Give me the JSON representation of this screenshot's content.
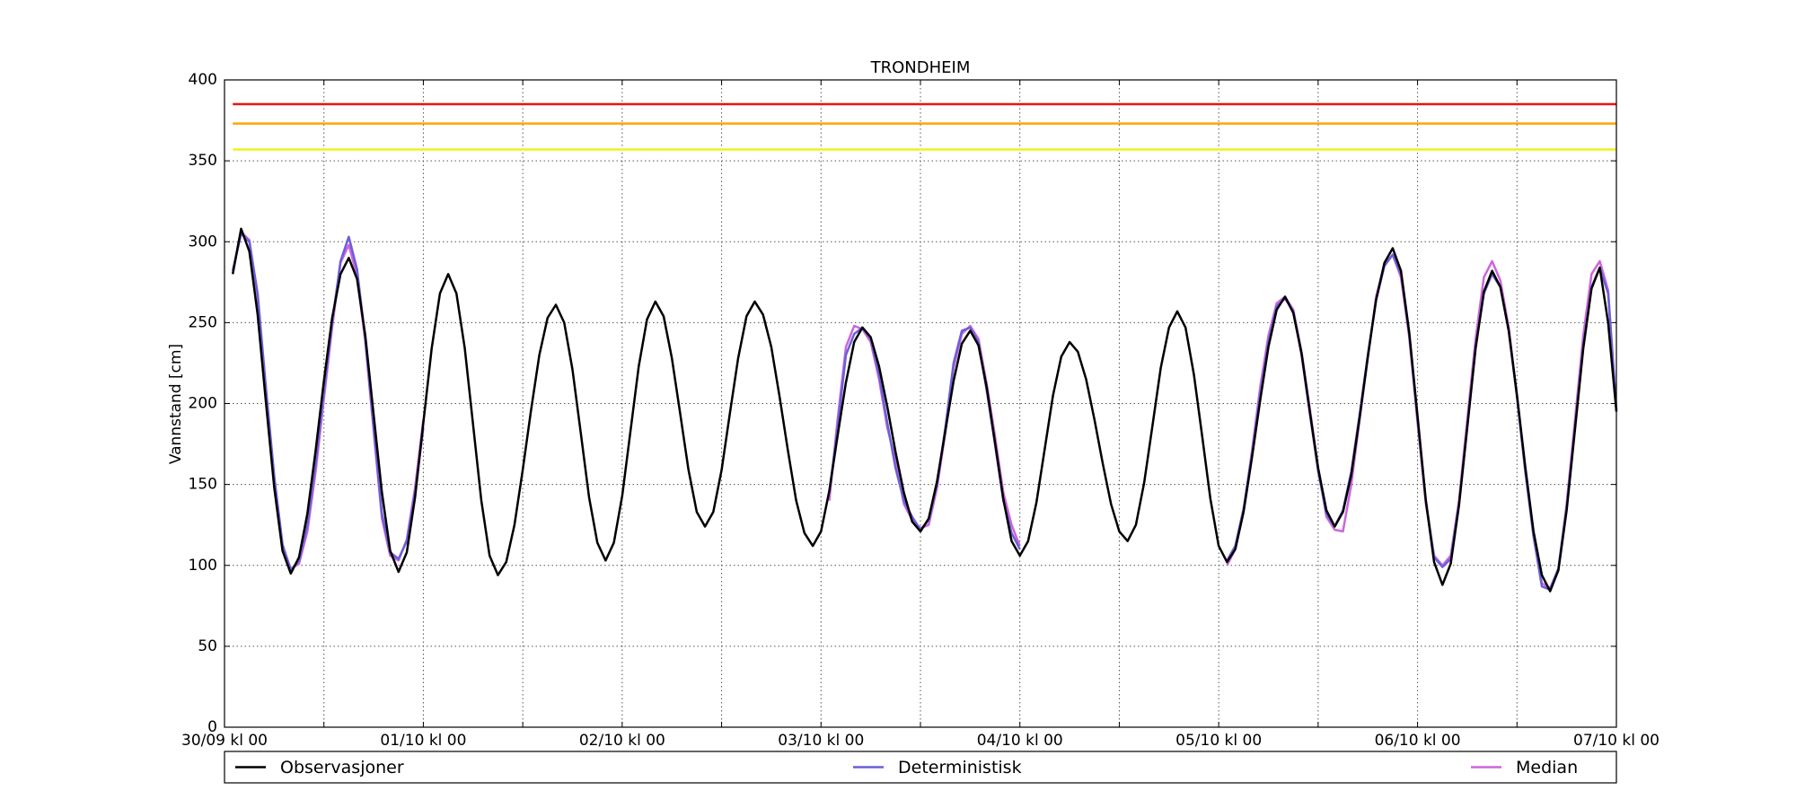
{
  "chart_data": {
    "type": "line",
    "title": "TRONDHEIM",
    "y_label": "Vannstand [cm]",
    "xlim": [
      0,
      168
    ],
    "ylim": [
      0,
      400
    ],
    "yticks": [
      0,
      50,
      100,
      150,
      200,
      250,
      300,
      350,
      400
    ],
    "xticks": [
      {
        "value": 0,
        "label": "30/09 kl 00"
      },
      {
        "value": 12,
        "label": null
      },
      {
        "value": 24,
        "label": "01/10 kl 00"
      },
      {
        "value": 36,
        "label": null
      },
      {
        "value": 48,
        "label": "02/10 kl 00"
      },
      {
        "value": 60,
        "label": null
      },
      {
        "value": 72,
        "label": "03/10 kl 00"
      },
      {
        "value": 84,
        "label": null
      },
      {
        "value": 96,
        "label": "04/10 kl 00"
      },
      {
        "value": 108,
        "label": null
      },
      {
        "value": 120,
        "label": "05/10 kl 00"
      },
      {
        "value": 132,
        "label": null
      },
      {
        "value": 144,
        "label": "06/10 kl 00"
      },
      {
        "value": 156,
        "label": null
      },
      {
        "value": 168,
        "label": "07/10 kl 00"
      }
    ],
    "grid": true,
    "legend": "below",
    "reference_lines": [
      {
        "value": 385,
        "color": "#ee1111"
      },
      {
        "value": 373,
        "color": "#ffa500"
      },
      {
        "value": 357,
        "color": "#f0f020"
      }
    ],
    "x": [
      1,
      2,
      3,
      4,
      5,
      6,
      7,
      8,
      9,
      10,
      11,
      12,
      13,
      14,
      15,
      16,
      17,
      18,
      19,
      20,
      21,
      22,
      23,
      24,
      25,
      26,
      27,
      28,
      29,
      30,
      31,
      32,
      33,
      34,
      35,
      36,
      37,
      38,
      39,
      40,
      41,
      42,
      43,
      44,
      45,
      46,
      47,
      48,
      49,
      50,
      51,
      52,
      53,
      54,
      55,
      56,
      57,
      58,
      59,
      60,
      61,
      62,
      63,
      64,
      65,
      66,
      67,
      68,
      69,
      70,
      71,
      72,
      73,
      74,
      75,
      76,
      77,
      78,
      79,
      80,
      81,
      82,
      83,
      84,
      85,
      86,
      87,
      88,
      89,
      90,
      91,
      92,
      93,
      94,
      95,
      96,
      97,
      98,
      99,
      100,
      101,
      102,
      103,
      104,
      105,
      106,
      107,
      108,
      109,
      110,
      111,
      112,
      113,
      114,
      115,
      116,
      117,
      118,
      119,
      120,
      121,
      122,
      123,
      124,
      125,
      126,
      127,
      128,
      129,
      130,
      131,
      132,
      133,
      134,
      135,
      136,
      137,
      138,
      139,
      140,
      141,
      142,
      143,
      144,
      145,
      146,
      147,
      148,
      149,
      150,
      151,
      152,
      153,
      154,
      155,
      156,
      157,
      158,
      159,
      160,
      161,
      162,
      163,
      164,
      165,
      166,
      167,
      168
    ],
    "series": [
      {
        "name": "Observasjoner",
        "color": "#000000",
        "values": [
          280,
          308,
          294,
          255,
          201,
          148,
          109,
          95,
          105,
          132,
          171,
          214,
          253,
          280,
          290,
          277,
          242,
          193,
          145,
          109,
          96,
          108,
          142,
          188,
          234,
          268,
          280,
          268,
          234,
          187,
          140,
          106,
          94,
          102,
          125,
          159,
          196,
          230,
          253,
          261,
          250,
          221,
          182,
          142,
          114,
          103,
          114,
          143,
          183,
          223,
          252,
          263,
          254,
          228,
          194,
          159,
          133,
          124,
          133,
          159,
          194,
          228,
          254,
          263,
          255,
          235,
          204,
          171,
          140,
          120,
          112,
          121,
          146,
          180,
          213,
          238,
          247,
          241,
          223,
          198,
          170,
          145,
          127,
          121,
          129,
          152,
          183,
          214,
          237,
          245,
          236,
          210,
          176,
          141,
          115,
          106,
          115,
          139,
          172,
          205,
          229,
          238,
          232,
          215,
          190,
          163,
          138,
          121,
          115,
          125,
          151,
          186,
          222,
          247,
          257,
          247,
          218,
          180,
          141,
          112,
          102,
          110,
          133,
          166,
          202,
          235,
          258,
          266,
          256,
          231,
          195,
          160,
          134,
          124,
          133,
          156,
          191,
          229,
          264,
          287,
          296,
          282,
          244,
          192,
          140,
          102,
          88,
          101,
          137,
          185,
          234,
          269,
          282,
          272,
          245,
          205,
          161,
          121,
          94,
          84,
          97,
          134,
          184,
          234,
          271,
          284,
          250,
          195
        ]
      },
      {
        "name": "Deterministisk",
        "color": "#6a5fd8",
        "values": [
          282,
          305,
          300,
          268,
          210,
          155,
          113,
          97,
          103,
          125,
          163,
          208,
          250,
          288,
          303,
          283,
          240,
          185,
          132,
          108,
          104,
          115,
          145,
          185,
          null,
          null,
          null,
          null,
          null,
          null,
          null,
          null,
          null,
          null,
          null,
          null,
          null,
          null,
          null,
          null,
          null,
          null,
          null,
          null,
          null,
          null,
          null,
          null,
          null,
          null,
          null,
          null,
          null,
          null,
          null,
          null,
          null,
          null,
          null,
          null,
          null,
          null,
          null,
          null,
          null,
          null,
          null,
          null,
          null,
          null,
          null,
          null,
          145,
          185,
          230,
          243,
          247,
          240,
          218,
          188,
          160,
          140,
          130,
          122,
          128,
          150,
          185,
          225,
          245,
          247,
          238,
          208,
          175,
          140,
          120,
          110,
          null,
          null,
          null,
          null,
          null,
          null,
          null,
          null,
          null,
          null,
          null,
          null,
          null,
          null,
          null,
          null,
          null,
          null,
          null,
          null,
          null,
          null,
          null,
          null,
          103,
          112,
          135,
          168,
          205,
          238,
          260,
          265,
          257,
          230,
          194,
          158,
          132,
          124,
          134,
          158,
          193,
          230,
          264,
          285,
          292,
          280,
          243,
          190,
          140,
          105,
          99,
          104,
          138,
          186,
          235,
          268,
          280,
          272,
          245,
          204,
          158,
          118,
          87,
          85,
          98,
          136,
          186,
          236,
          272,
          284,
          268,
          196
        ]
      },
      {
        "name": "Median",
        "color": "#cc66dd",
        "values": [
          282,
          306,
          301,
          266,
          208,
          153,
          112,
          98,
          101,
          121,
          158,
          203,
          247,
          287,
          298,
          279,
          238,
          183,
          129,
          106,
          103,
          116,
          148,
          190,
          null,
          null,
          null,
          null,
          null,
          null,
          null,
          null,
          null,
          null,
          null,
          null,
          null,
          null,
          null,
          null,
          null,
          null,
          null,
          null,
          null,
          null,
          null,
          null,
          null,
          null,
          null,
          null,
          null,
          null,
          null,
          null,
          null,
          null,
          null,
          null,
          null,
          null,
          null,
          null,
          null,
          null,
          null,
          null,
          null,
          null,
          null,
          null,
          140,
          190,
          235,
          248,
          246,
          238,
          215,
          185,
          165,
          138,
          128,
          123,
          125,
          148,
          182,
          222,
          243,
          248,
          240,
          212,
          180,
          145,
          125,
          112,
          null,
          null,
          null,
          null,
          null,
          null,
          null,
          null,
          null,
          null,
          null,
          null,
          null,
          null,
          null,
          null,
          null,
          null,
          null,
          null,
          null,
          null,
          null,
          null,
          100,
          110,
          134,
          170,
          210,
          242,
          262,
          266,
          258,
          232,
          197,
          160,
          130,
          122,
          121,
          150,
          190,
          228,
          266,
          286,
          292,
          278,
          241,
          188,
          138,
          106,
          100,
          106,
          140,
          190,
          240,
          278,
          288,
          276,
          247,
          205,
          160,
          118,
          89,
          86,
          98,
          138,
          190,
          242,
          280,
          288,
          270,
          196
        ]
      }
    ]
  }
}
